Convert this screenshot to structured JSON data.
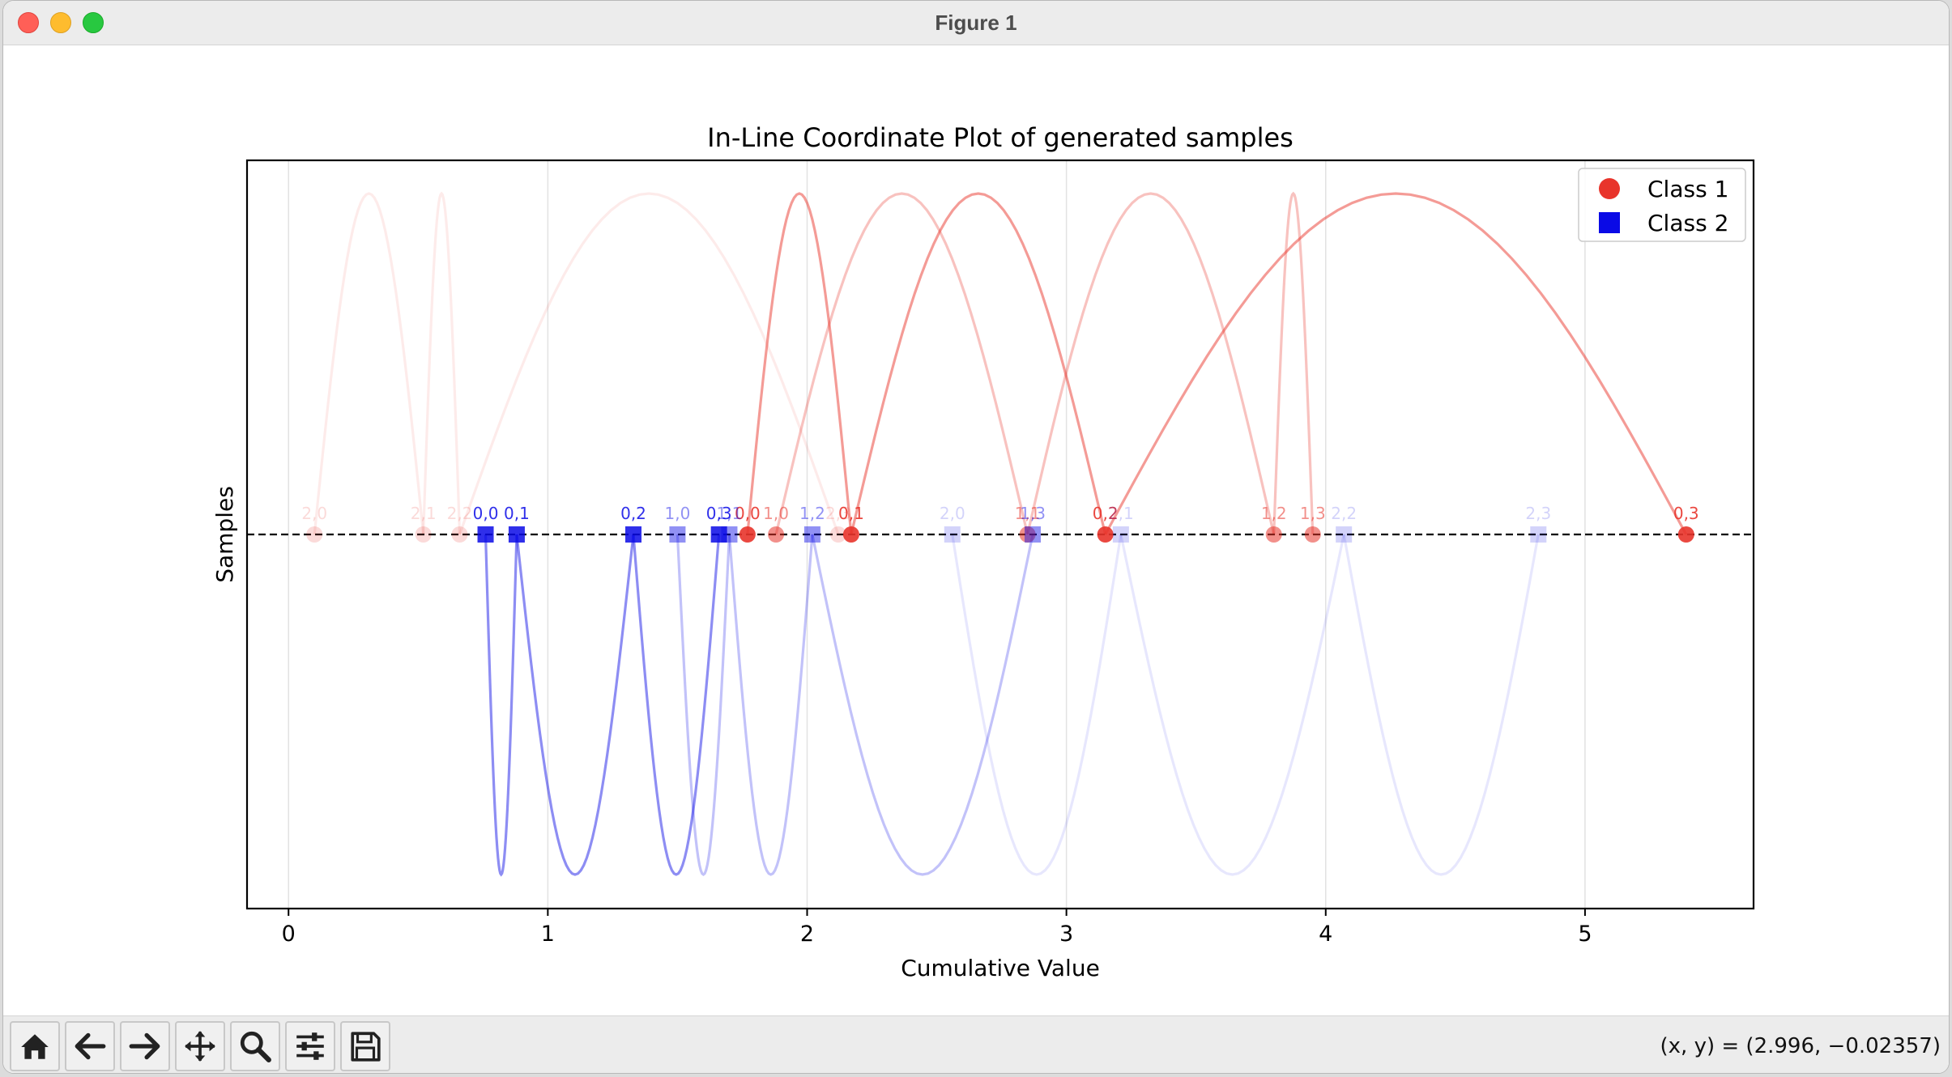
{
  "window": {
    "title": "Figure 1"
  },
  "toolbar": {
    "buttons": [
      {
        "name": "home-button",
        "icon": "home-icon"
      },
      {
        "name": "back-button",
        "icon": "arrow-left-icon"
      },
      {
        "name": "forward-button",
        "icon": "arrow-right-icon"
      },
      {
        "name": "pan-button",
        "icon": "move-icon"
      },
      {
        "name": "zoom-button",
        "icon": "magnifier-icon"
      },
      {
        "name": "configure-subplots-button",
        "icon": "sliders-icon"
      },
      {
        "name": "save-button",
        "icon": "floppy-disk-icon"
      }
    ],
    "coords_text": "(x, y) = (2.996, −0.02357)"
  },
  "chart_data": {
    "type": "scatter",
    "title": "In-Line Coordinate Plot of generated samples",
    "xlabel": "Cumulative Value",
    "ylabel": "Samples",
    "xlim": [
      -0.16,
      5.65
    ],
    "xticks": [
      0,
      1,
      2,
      3,
      4,
      5
    ],
    "x_grid": true,
    "legend_position": "top-right",
    "series": [
      {
        "name": "Class 1",
        "color": "#e8342b",
        "marker": "circle",
        "arc_direction": "up",
        "samples": [
          {
            "id": 0,
            "opacity": 0.9,
            "points": [
              {
                "label": "0,0",
                "x": 1.77
              },
              {
                "label": "0,1",
                "x": 2.17
              },
              {
                "label": "0,2",
                "x": 3.15
              },
              {
                "label": "0,3",
                "x": 5.39
              }
            ]
          },
          {
            "id": 1,
            "opacity": 0.55,
            "points": [
              {
                "label": "1,0",
                "x": 1.88
              },
              {
                "label": "1,1",
                "x": 2.85
              },
              {
                "label": "1,2",
                "x": 3.8
              },
              {
                "label": "1,3",
                "x": 3.95
              }
            ]
          },
          {
            "id": 2,
            "opacity": 0.18,
            "points": [
              {
                "label": "2,0",
                "x": 0.1
              },
              {
                "label": "2,1",
                "x": 0.52
              },
              {
                "label": "2,2",
                "x": 0.66
              },
              {
                "label": "2,3",
                "x": 2.12
              }
            ]
          }
        ]
      },
      {
        "name": "Class 2",
        "color": "#0a0ae6",
        "marker": "square",
        "arc_direction": "down",
        "samples": [
          {
            "id": 0,
            "opacity": 0.85,
            "points": [
              {
                "label": "0,0",
                "x": 0.76
              },
              {
                "label": "0,1",
                "x": 0.88
              },
              {
                "label": "0,2",
                "x": 1.33
              },
              {
                "label": "0,3",
                "x": 1.66
              }
            ]
          },
          {
            "id": 1,
            "opacity": 0.45,
            "points": [
              {
                "label": "1,0",
                "x": 1.5
              },
              {
                "label": "1,1",
                "x": 1.7
              },
              {
                "label": "1,2",
                "x": 2.02
              },
              {
                "label": "1,3",
                "x": 2.87
              }
            ]
          },
          {
            "id": 2,
            "opacity": 0.18,
            "points": [
              {
                "label": "2,0",
                "x": 2.56
              },
              {
                "label": "2,1",
                "x": 3.21
              },
              {
                "label": "2,2",
                "x": 4.07
              },
              {
                "label": "2,3",
                "x": 4.82
              }
            ]
          }
        ]
      }
    ]
  }
}
